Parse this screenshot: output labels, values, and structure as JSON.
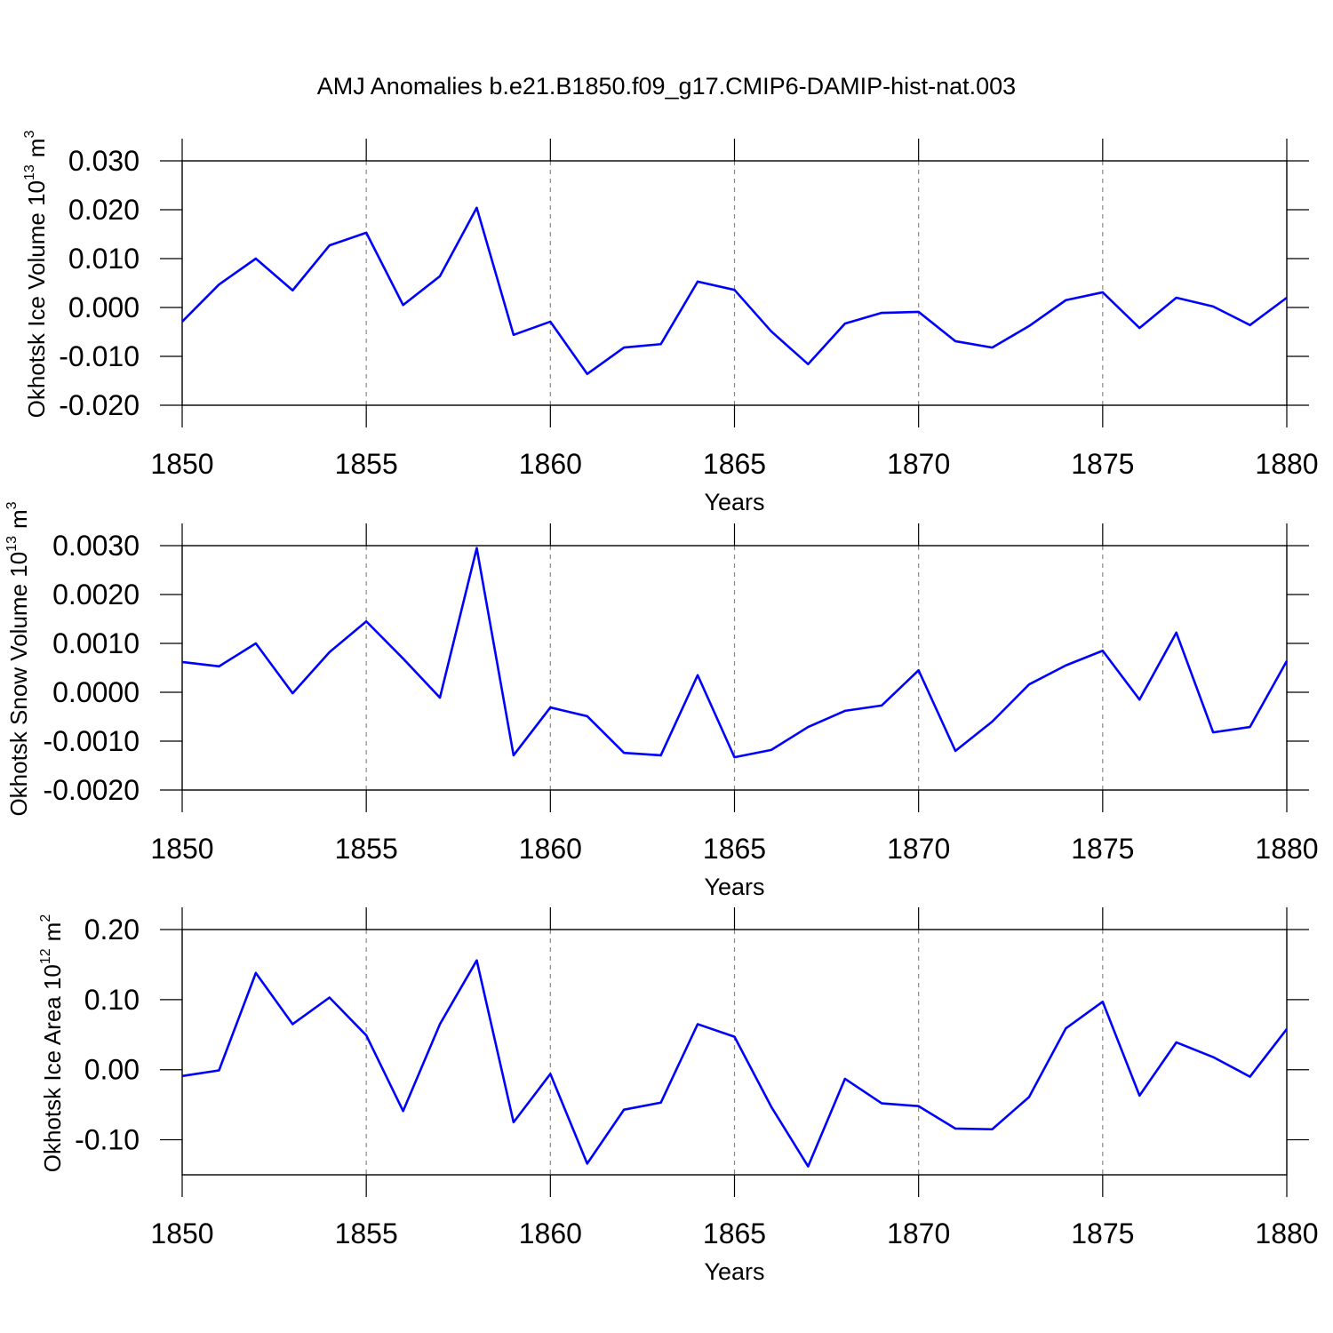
{
  "title": "AMJ Anomalies b.e21.B1850.f09_g17.CMIP6-DAMIP-hist-nat.003",
  "chart_data": [
    {
      "type": "line",
      "ylabel": {
        "text": "Okhotsk Ice Volume 10",
        "exp": "13",
        "unit": "m",
        "unit_exp": "3"
      },
      "xlabel": "Years",
      "x": [
        1850,
        1851,
        1852,
        1853,
        1854,
        1855,
        1856,
        1857,
        1858,
        1859,
        1860,
        1861,
        1862,
        1863,
        1864,
        1865,
        1866,
        1867,
        1868,
        1869,
        1870,
        1871,
        1872,
        1873,
        1874,
        1875,
        1876,
        1877,
        1878,
        1879,
        1880
      ],
      "values": [
        -0.0029,
        0.0047,
        0.01,
        0.0035,
        0.0127,
        0.0153,
        0.0005,
        0.0064,
        0.0204,
        -0.0056,
        -0.0029,
        -0.0136,
        -0.0082,
        -0.0075,
        0.0053,
        0.0036,
        -0.0049,
        -0.0116,
        -0.0033,
        -0.0011,
        -0.0009,
        -0.0069,
        -0.0082,
        -0.0038,
        0.0015,
        0.0031,
        -0.0042,
        0.002,
        0.0002,
        -0.0036,
        0.002
      ],
      "color": "#0000ff",
      "xlim": [
        1850,
        1880
      ],
      "xticks": [
        1850,
        1855,
        1860,
        1865,
        1870,
        1875,
        1880
      ],
      "ylim": [
        -0.02,
        0.03
      ],
      "yticks": [
        {
          "value": -0.02,
          "label": "-0.020"
        },
        {
          "value": -0.01,
          "label": "-0.010"
        },
        {
          "value": 0,
          "label": "0.000"
        },
        {
          "value": 0.01,
          "label": "0.010"
        },
        {
          "value": 0.02,
          "label": "0.020"
        },
        {
          "value": 0.03,
          "label": "0.030"
        }
      ],
      "xgrid": true
    },
    {
      "type": "line",
      "ylabel": {
        "text": "Okhotsk Snow Volume 10",
        "exp": "13",
        "unit": "m",
        "unit_exp": "3"
      },
      "xlabel": "Years",
      "x": [
        1850,
        1851,
        1852,
        1853,
        1854,
        1855,
        1856,
        1857,
        1858,
        1859,
        1860,
        1861,
        1862,
        1863,
        1864,
        1865,
        1866,
        1867,
        1868,
        1869,
        1870,
        1871,
        1872,
        1873,
        1874,
        1875,
        1876,
        1877,
        1878,
        1879,
        1880
      ],
      "values": [
        0.00062,
        0.00053,
        0.001,
        -2e-05,
        0.00082,
        0.00145,
        0.00069,
        -0.00011,
        0.00295,
        -0.00129,
        -0.00031,
        -0.00049,
        -0.00124,
        -0.00129,
        0.00035,
        -0.00133,
        -0.00118,
        -0.00071,
        -0.00038,
        -0.00027,
        0.00045,
        -0.0012,
        -0.0006,
        0.00016,
        0.00055,
        0.00085,
        -0.00015,
        0.00122,
        -0.00082,
        -0.00071,
        0.00064
      ],
      "color": "#0000ff",
      "xlim": [
        1850,
        1880
      ],
      "xticks": [
        1850,
        1855,
        1860,
        1865,
        1870,
        1875,
        1880
      ],
      "ylim": [
        -0.002,
        0.003
      ],
      "yticks": [
        {
          "value": -0.002,
          "label": "-0.0020"
        },
        {
          "value": -0.001,
          "label": "-0.0010"
        },
        {
          "value": 0,
          "label": "0.0000"
        },
        {
          "value": 0.001,
          "label": "0.0010"
        },
        {
          "value": 0.002,
          "label": "0.0020"
        },
        {
          "value": 0.003,
          "label": "0.0030"
        }
      ],
      "xgrid": true
    },
    {
      "type": "line",
      "ylabel": {
        "text": "Okhotsk Ice Area 10",
        "exp": "12",
        "unit": "m",
        "unit_exp": "2"
      },
      "xlabel": "Years",
      "x": [
        1850,
        1851,
        1852,
        1853,
        1854,
        1855,
        1856,
        1857,
        1858,
        1859,
        1860,
        1861,
        1862,
        1863,
        1864,
        1865,
        1866,
        1867,
        1868,
        1869,
        1870,
        1871,
        1872,
        1873,
        1874,
        1875,
        1876,
        1877,
        1878,
        1879,
        1880
      ],
      "values": [
        -0.009,
        -0.001,
        0.138,
        0.065,
        0.103,
        0.049,
        -0.059,
        0.065,
        0.156,
        -0.075,
        -0.006,
        -0.134,
        -0.057,
        -0.047,
        0.065,
        0.047,
        -0.053,
        -0.138,
        -0.013,
        -0.048,
        -0.052,
        -0.084,
        -0.085,
        -0.039,
        0.059,
        0.097,
        -0.037,
        0.039,
        0.018,
        -0.01,
        0.058
      ],
      "color": "#0000ff",
      "xlim": [
        1850,
        1880
      ],
      "xticks": [
        1850,
        1855,
        1860,
        1865,
        1870,
        1875,
        1880
      ],
      "ylim": [
        -0.15,
        0.2
      ],
      "yticks": [
        {
          "value": -0.1,
          "label": "-0.10"
        },
        {
          "value": 0,
          "label": "0.00"
        },
        {
          "value": 0.1,
          "label": "0.10"
        },
        {
          "value": 0.2,
          "label": "0.20"
        }
      ],
      "xgrid": true
    }
  ]
}
